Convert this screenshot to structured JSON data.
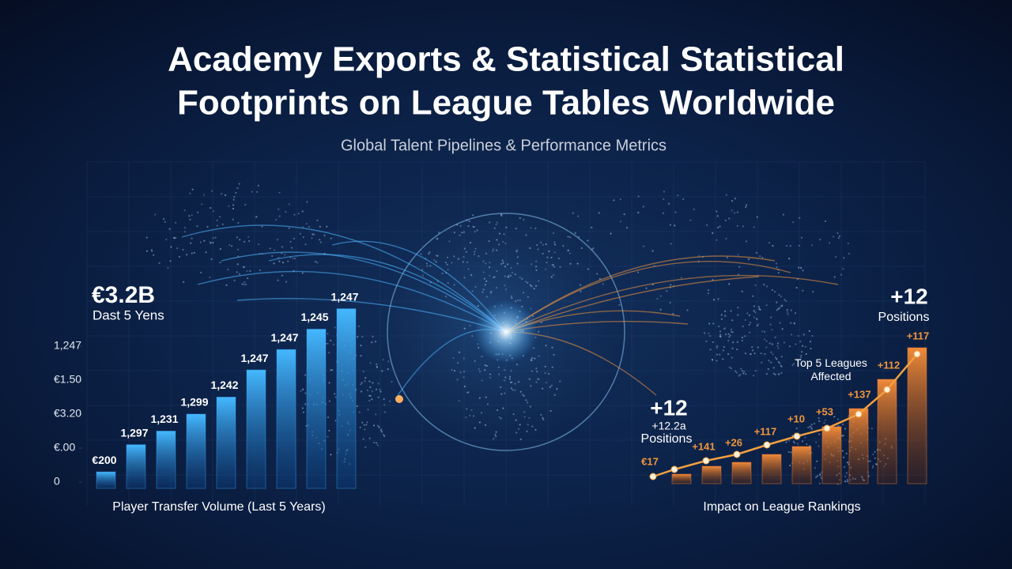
{
  "title_lines": [
    "Academy Exports & Statistical Statistical",
    "Footprints on League Tables Worldwide"
  ],
  "subtitle": "Global Talent Pipelines & Performance Metrics",
  "chart_data": [
    {
      "type": "bar",
      "color": "#3aa8ff",
      "values": [
        0.3,
        1.1,
        1.5,
        2.0,
        2.5,
        3.3,
        3.9,
        4.5,
        5.1
      ],
      "bar_labels": [
        "€200",
        "1,297",
        "1,231",
        "1,299",
        "1,242",
        "1,247",
        "1,247",
        "1,245",
        "1,247"
      ],
      "ylim": [
        0,
        5.5
      ],
      "yticks": [
        0,
        {
          "value": 1,
          "label": "€.00"
        },
        {
          "value": 2,
          "label": "€3.20"
        },
        {
          "value": 3,
          "label": "€1.50"
        },
        {
          "value": 4,
          "label": "1,247"
        }
      ],
      "x_label": "Player Transfer Volume (Last 5 Years)",
      "callout_value": "€3.2B",
      "callout_caption": "Dast 5 Yens"
    },
    {
      "type": "bar",
      "color": "#e8782a",
      "line_color": "#f0a040",
      "values": [
        6,
        11,
        13.5,
        18.5,
        23.5,
        36,
        47.5,
        66,
        86
      ],
      "line_values": [
        4.5,
        9,
        14.5,
        18.5,
        24.5,
        30,
        35,
        44,
        59.5,
        82
      ],
      "bar_labels": [
        "€17",
        "+141",
        "+26",
        "+117",
        "+10",
        "+53",
        "+137",
        "+112",
        "+117"
      ],
      "ylim": [
        0,
        100
      ],
      "x_label": "Impact on League Rankings",
      "callouts": [
        {
          "value": "+12",
          "caption": "+12.2a",
          "caption2": "Positions"
        },
        {
          "value": "+12",
          "caption": "Positions"
        }
      ],
      "note": "Top 5 Leagues Affected"
    }
  ]
}
